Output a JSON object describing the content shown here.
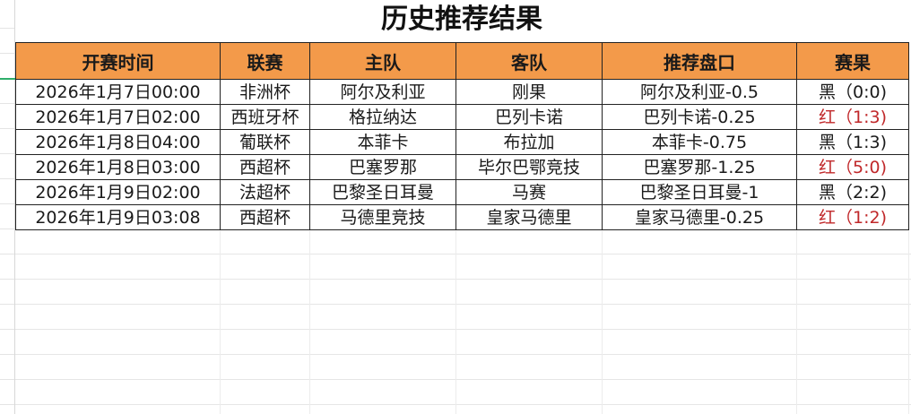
{
  "title": "历史推荐结果",
  "headers": [
    "开赛时间",
    "联赛",
    "主队",
    "客队",
    "推荐盘口",
    "赛果"
  ],
  "rows": [
    {
      "time": "2026年1月7日00:00",
      "league": "非洲杯",
      "home": "阿尔及利亚",
      "away": "刚果",
      "pick": "阿尔及利亚-0.5",
      "result": "黑（0:0)",
      "color": "#1a1a1a"
    },
    {
      "time": "2026年1月7日02:00",
      "league": "西班牙杯",
      "home": "格拉纳达",
      "away": "巴列卡诺",
      "pick": "巴列卡诺-0.25",
      "result": "红（1:3)",
      "color": "#c0282a"
    },
    {
      "time": "2026年1月8日04:00",
      "league": "葡联杯",
      "home": "本菲卡",
      "away": "布拉加",
      "pick": "本菲卡-0.75",
      "result": "黑（1:3)",
      "color": "#1a1a1a"
    },
    {
      "time": "2026年1月8日03:00",
      "league": "西超杯",
      "home": "巴塞罗那",
      "away": "毕尔巴鄂竞技",
      "pick": "巴塞罗那-1.25",
      "result": "红（5:0)",
      "color": "#c0282a"
    },
    {
      "time": "2026年1月9日02:00",
      "league": "法超杯",
      "home": "巴黎圣日耳曼",
      "away": "马赛",
      "pick": "巴黎圣日耳曼-1",
      "result": "黑（2:2)",
      "color": "#1a1a1a"
    },
    {
      "time": "2026年1月9日03:08",
      "league": "西超杯",
      "home": "马德里竞技",
      "away": "皇家马德里",
      "pick": "皇家马德里-0.25",
      "result": "红（1:2)",
      "color": "#c0282a"
    }
  ],
  "colors": {
    "header_bg": "#f39a4a",
    "win": "#c0282a",
    "loss": "#1a1a1a"
  }
}
